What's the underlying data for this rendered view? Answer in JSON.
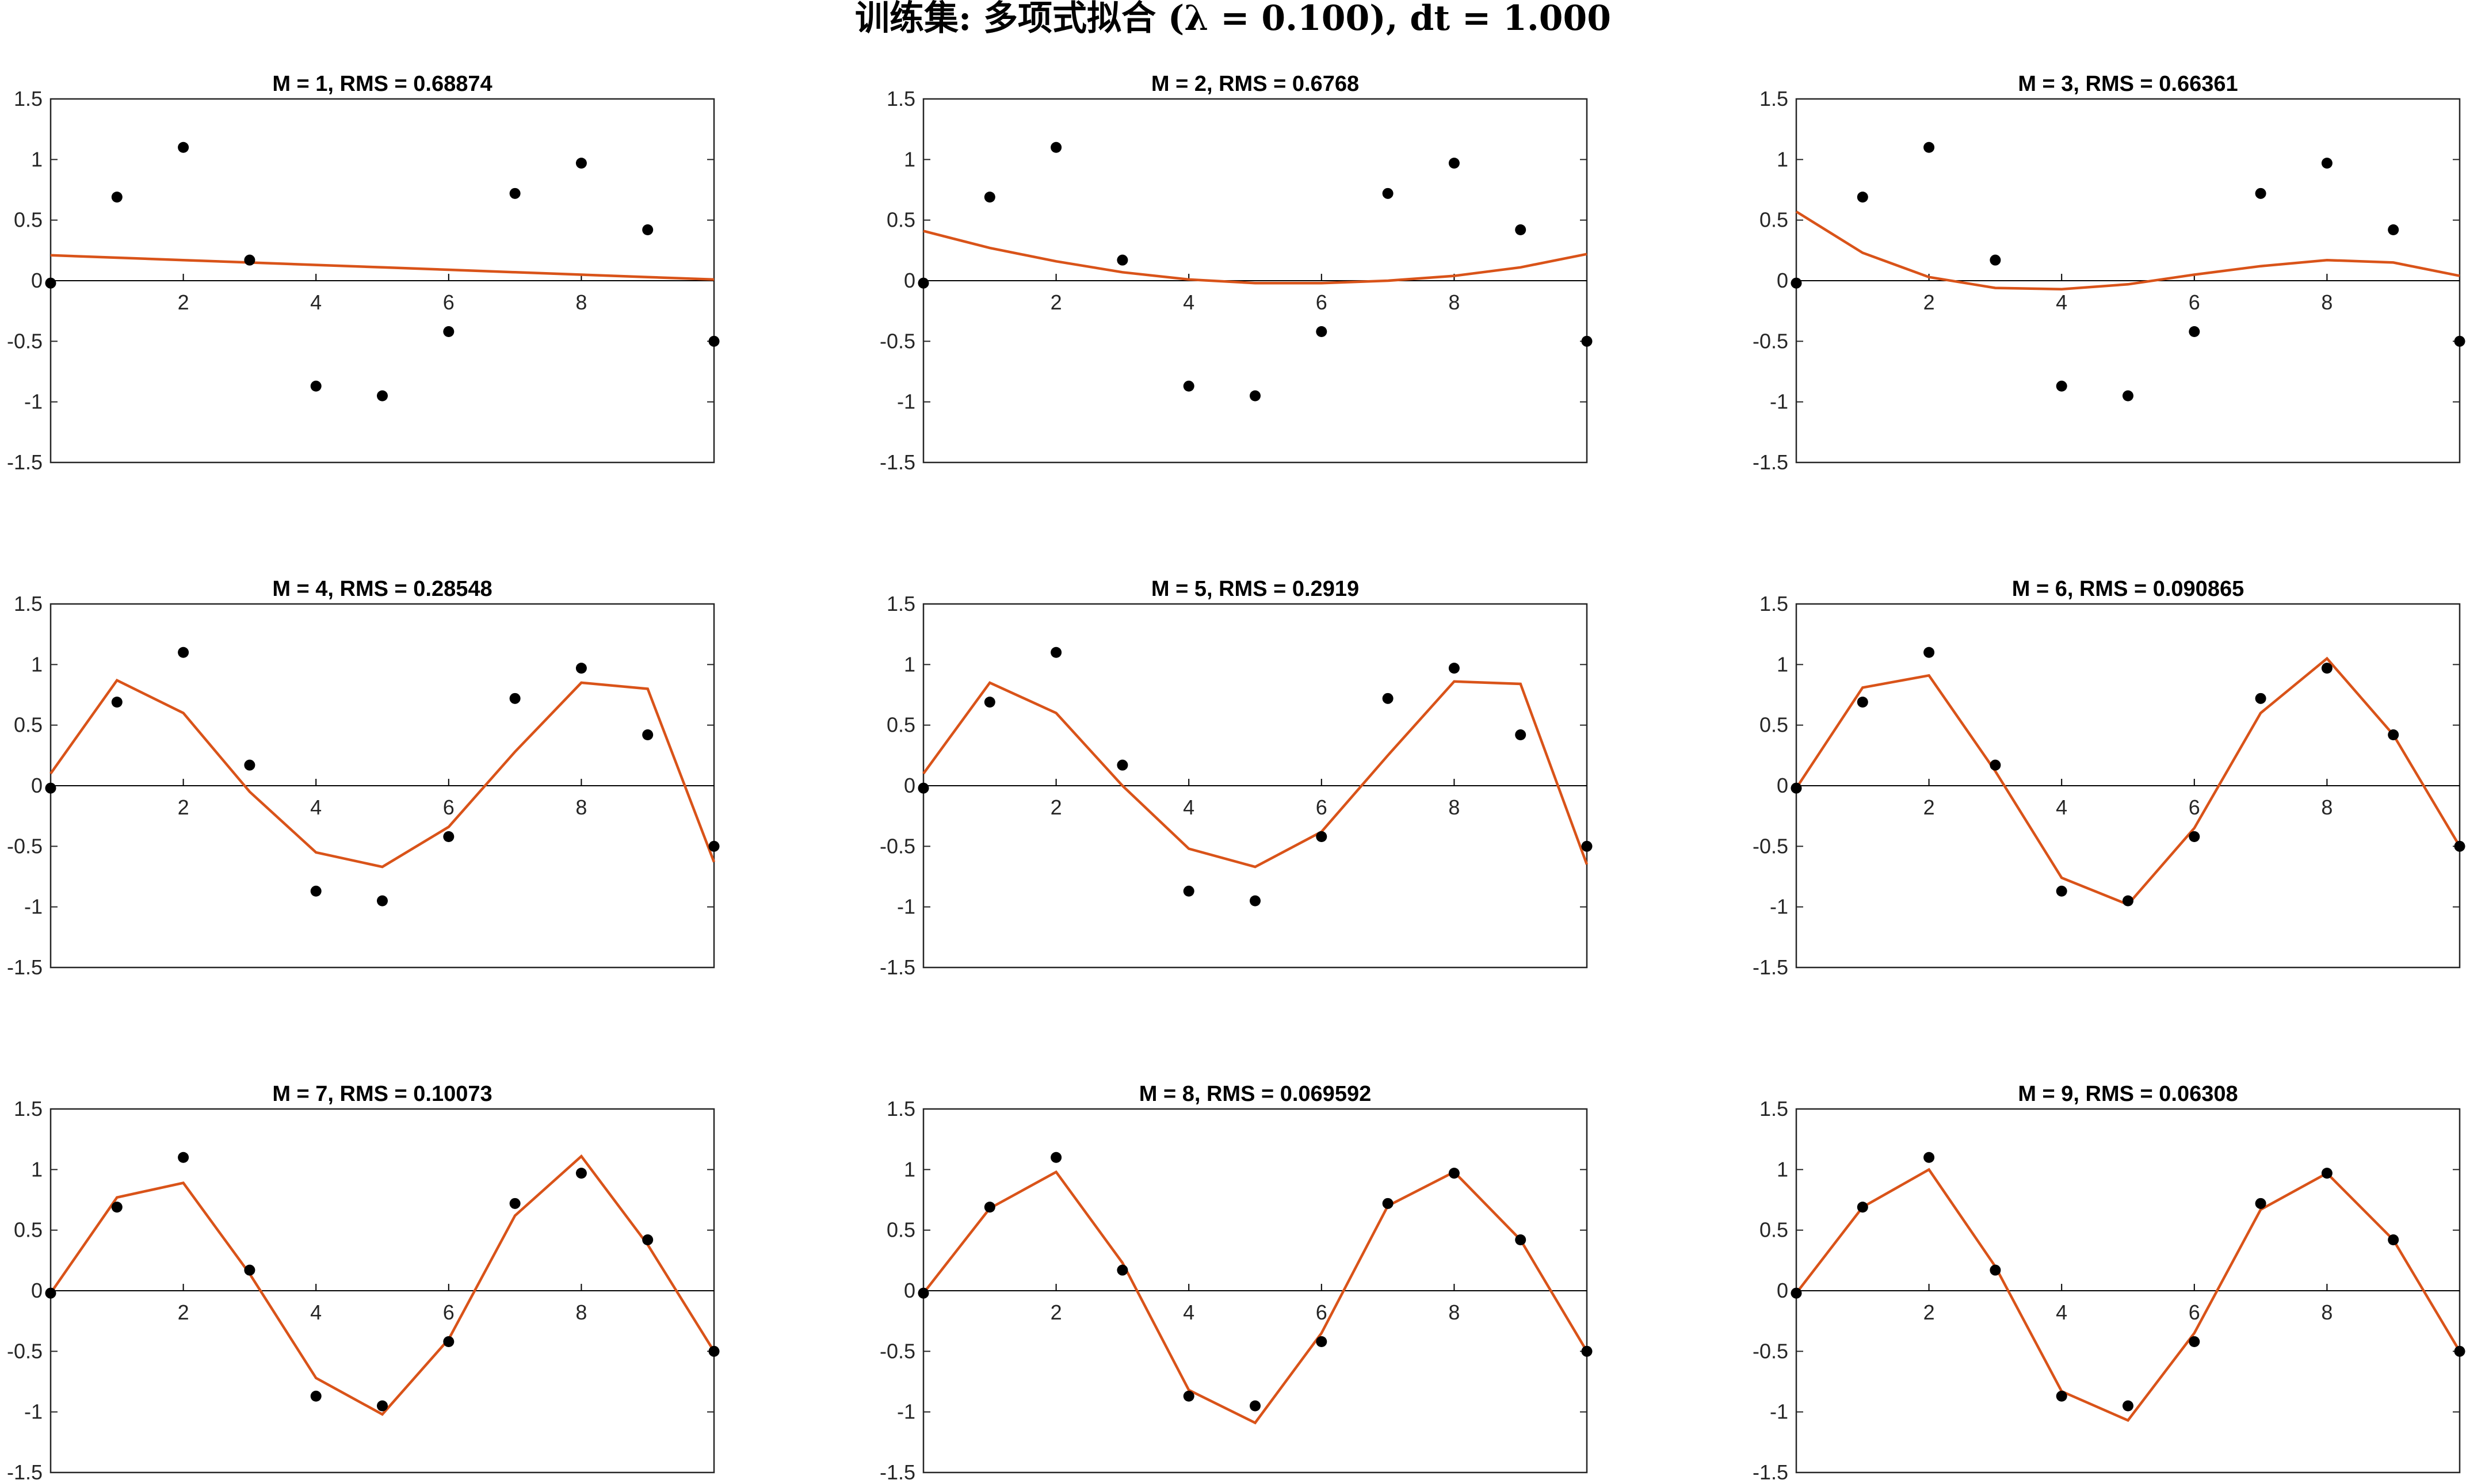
{
  "figure_title": "训练集: 多项式拟合 (λ = 0.100), dt = 1.000",
  "colors": {
    "fit": "#d95319",
    "points": "#000000",
    "axes": "#262626"
  },
  "chart_data": [
    {
      "type": "line",
      "title": "M = 1, RMS = 0.68874",
      "x": [
        0,
        1,
        2,
        3,
        4,
        5,
        6,
        7,
        8,
        9,
        10
      ],
      "series": [
        {
          "values": [
            0.21,
            0.19,
            0.17,
            0.15,
            0.13,
            0.11,
            0.09,
            0.07,
            0.05,
            0.03,
            0.01
          ]
        },
        {
          "values": [
            -0.02,
            0.69,
            1.1,
            0.17,
            -0.87,
            -0.95,
            -0.42,
            0.72,
            0.97,
            0.42,
            -0.5
          ]
        }
      ],
      "xlim": [
        0,
        10
      ],
      "ylim": [
        -1.5,
        1.5
      ],
      "xticks": [
        "2",
        "4",
        "6",
        "8"
      ],
      "yticks": [
        "1.5",
        "1",
        "0.5",
        "0",
        "-0.5",
        "-1",
        "-1.5"
      ]
    },
    {
      "type": "line",
      "title": "M = 2, RMS = 0.6768",
      "x": [
        0,
        1,
        2,
        3,
        4,
        5,
        6,
        7,
        8,
        9,
        10
      ],
      "series": [
        {
          "values": [
            0.41,
            0.27,
            0.16,
            0.07,
            0.01,
            -0.02,
            -0.02,
            0.0,
            0.04,
            0.11,
            0.22
          ]
        },
        {
          "values": [
            -0.02,
            0.69,
            1.1,
            0.17,
            -0.87,
            -0.95,
            -0.42,
            0.72,
            0.97,
            0.42,
            -0.5
          ]
        }
      ],
      "xlim": [
        0,
        10
      ],
      "ylim": [
        -1.5,
        1.5
      ],
      "xticks": [
        "2",
        "4",
        "6",
        "8"
      ],
      "yticks": [
        "1.5",
        "1",
        "0.5",
        "0",
        "-0.5",
        "-1",
        "-1.5"
      ]
    },
    {
      "type": "line",
      "title": "M = 3, RMS = 0.66361",
      "x": [
        0,
        1,
        2,
        3,
        4,
        5,
        6,
        7,
        8,
        9,
        10
      ],
      "series": [
        {
          "values": [
            0.57,
            0.23,
            0.03,
            -0.06,
            -0.07,
            -0.03,
            0.05,
            0.12,
            0.17,
            0.15,
            0.04
          ]
        },
        {
          "values": [
            -0.02,
            0.69,
            1.1,
            0.17,
            -0.87,
            -0.95,
            -0.42,
            0.72,
            0.97,
            0.42,
            -0.5
          ]
        }
      ],
      "xlim": [
        0,
        10
      ],
      "ylim": [
        -1.5,
        1.5
      ],
      "xticks": [
        "2",
        "4",
        "6",
        "8"
      ],
      "yticks": [
        "1.5",
        "1",
        "0.5",
        "0",
        "-0.5",
        "-1",
        "-1.5"
      ]
    },
    {
      "type": "line",
      "title": "M = 4, RMS = 0.28548",
      "x": [
        0,
        1,
        2,
        3,
        4,
        5,
        6,
        7,
        8,
        9,
        10
      ],
      "series": [
        {
          "values": [
            0.1,
            0.87,
            0.6,
            -0.05,
            -0.55,
            -0.67,
            -0.34,
            0.28,
            0.85,
            0.8,
            -0.63
          ]
        },
        {
          "values": [
            -0.02,
            0.69,
            1.1,
            0.17,
            -0.87,
            -0.95,
            -0.42,
            0.72,
            0.97,
            0.42,
            -0.5
          ]
        }
      ],
      "xlim": [
        0,
        10
      ],
      "ylim": [
        -1.5,
        1.5
      ],
      "xticks": [
        "2",
        "4",
        "6",
        "8"
      ],
      "yticks": [
        "1.5",
        "1",
        "0.5",
        "0",
        "-0.5",
        "-1",
        "-1.5"
      ]
    },
    {
      "type": "line",
      "title": "M = 5, RMS = 0.2919",
      "x": [
        0,
        1,
        2,
        3,
        4,
        5,
        6,
        7,
        8,
        9,
        10
      ],
      "series": [
        {
          "values": [
            0.1,
            0.85,
            0.6,
            0.0,
            -0.52,
            -0.67,
            -0.38,
            0.25,
            0.86,
            0.84,
            -0.65
          ]
        },
        {
          "values": [
            -0.02,
            0.69,
            1.1,
            0.17,
            -0.87,
            -0.95,
            -0.42,
            0.72,
            0.97,
            0.42,
            -0.5
          ]
        }
      ],
      "xlim": [
        0,
        10
      ],
      "ylim": [
        -1.5,
        1.5
      ],
      "xticks": [
        "2",
        "4",
        "6",
        "8"
      ],
      "yticks": [
        "1.5",
        "1",
        "0.5",
        "0",
        "-0.5",
        "-1",
        "-1.5"
      ]
    },
    {
      "type": "line",
      "title": "M = 6, RMS = 0.090865",
      "x": [
        0,
        1,
        2,
        3,
        4,
        5,
        6,
        7,
        8,
        9,
        10
      ],
      "series": [
        {
          "values": [
            -0.02,
            0.81,
            0.91,
            0.12,
            -0.76,
            -0.98,
            -0.35,
            0.6,
            1.05,
            0.42,
            -0.5
          ]
        },
        {
          "values": [
            -0.02,
            0.69,
            1.1,
            0.17,
            -0.87,
            -0.95,
            -0.42,
            0.72,
            0.97,
            0.42,
            -0.5
          ]
        }
      ],
      "xlim": [
        0,
        10
      ],
      "ylim": [
        -1.5,
        1.5
      ],
      "xticks": [
        "2",
        "4",
        "6",
        "8"
      ],
      "yticks": [
        "1.5",
        "1",
        "0.5",
        "0",
        "-0.5",
        "-1",
        "-1.5"
      ]
    },
    {
      "type": "line",
      "title": "M = 7, RMS = 0.10073",
      "x": [
        0,
        1,
        2,
        3,
        4,
        5,
        6,
        7,
        8,
        9,
        10
      ],
      "series": [
        {
          "values": [
            -0.02,
            0.77,
            0.89,
            0.14,
            -0.72,
            -1.02,
            -0.4,
            0.62,
            1.11,
            0.38,
            -0.5
          ]
        },
        {
          "values": [
            -0.02,
            0.69,
            1.1,
            0.17,
            -0.87,
            -0.95,
            -0.42,
            0.72,
            0.97,
            0.42,
            -0.5
          ]
        }
      ],
      "xlim": [
        0,
        10
      ],
      "ylim": [
        -1.5,
        1.5
      ],
      "xticks": [
        "2",
        "4",
        "6",
        "8"
      ],
      "yticks": [
        "1.5",
        "1",
        "0.5",
        "0",
        "-0.5",
        "-1",
        "-1.5"
      ]
    },
    {
      "type": "line",
      "title": "M = 8, RMS = 0.069592",
      "x": [
        0,
        1,
        2,
        3,
        4,
        5,
        6,
        7,
        8,
        9,
        10
      ],
      "series": [
        {
          "values": [
            -0.02,
            0.68,
            0.98,
            0.23,
            -0.82,
            -1.09,
            -0.35,
            0.7,
            0.98,
            0.42,
            -0.5
          ]
        },
        {
          "values": [
            -0.02,
            0.69,
            1.1,
            0.17,
            -0.87,
            -0.95,
            -0.42,
            0.72,
            0.97,
            0.42,
            -0.5
          ]
        }
      ],
      "xlim": [
        0,
        10
      ],
      "ylim": [
        -1.5,
        1.5
      ],
      "xticks": [
        "2",
        "4",
        "6",
        "8"
      ],
      "yticks": [
        "1.5",
        "1",
        "0.5",
        "0",
        "-0.5",
        "-1",
        "-1.5"
      ]
    },
    {
      "type": "line",
      "title": "M = 9, RMS = 0.06308",
      "x": [
        0,
        1,
        2,
        3,
        4,
        5,
        6,
        7,
        8,
        9,
        10
      ],
      "series": [
        {
          "values": [
            -0.02,
            0.69,
            1.0,
            0.2,
            -0.83,
            -1.07,
            -0.35,
            0.67,
            0.97,
            0.42,
            -0.5
          ]
        },
        {
          "values": [
            -0.02,
            0.69,
            1.1,
            0.17,
            -0.87,
            -0.95,
            -0.42,
            0.72,
            0.97,
            0.42,
            -0.5
          ]
        }
      ],
      "xlim": [
        0,
        10
      ],
      "ylim": [
        -1.5,
        1.5
      ],
      "xticks": [
        "2",
        "4",
        "6",
        "8"
      ],
      "yticks": [
        "1.5",
        "1",
        "0.5",
        "0",
        "-0.5",
        "-1",
        "-1.5"
      ]
    }
  ]
}
